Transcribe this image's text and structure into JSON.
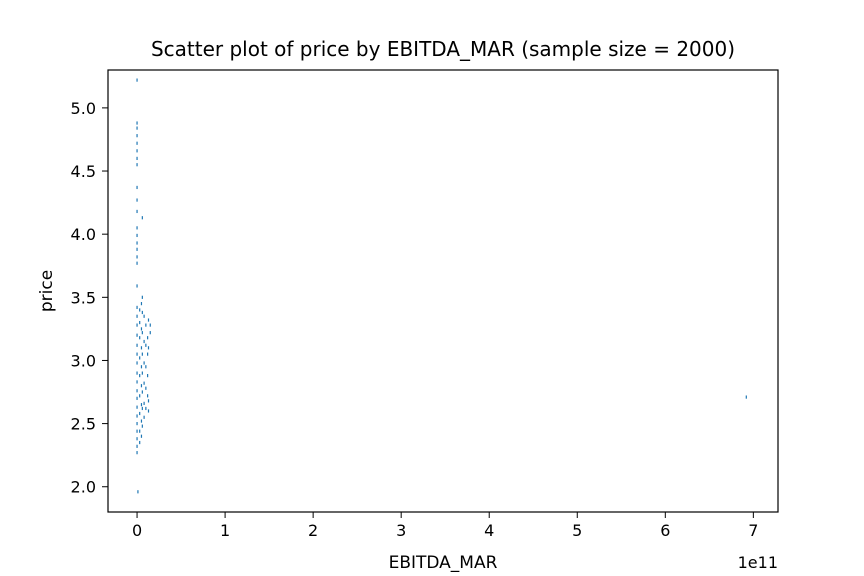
{
  "chart_data": {
    "type": "scatter",
    "title": "Scatter plot of price by EBITDA_MAR (sample size = 2000)",
    "xlabel": "EBITDA_MAR",
    "ylabel": "price",
    "x_offset_label": "1e11",
    "xlim": [
      -0.33,
      7.28
    ],
    "ylim": [
      1.8,
      5.3
    ],
    "xticks": [
      0,
      1,
      2,
      3,
      4,
      5,
      6,
      7
    ],
    "xtick_labels": [
      "0",
      "1",
      "2",
      "3",
      "4",
      "5",
      "6",
      "7"
    ],
    "yticks": [
      2.0,
      2.5,
      3.0,
      3.5,
      4.0,
      4.5,
      5.0
    ],
    "ytick_labels": [
      "2.0",
      "2.5",
      "3.0",
      "3.5",
      "4.0",
      "4.5",
      "5.0"
    ],
    "grid": false,
    "marker_color": "#1f77b4",
    "points": [
      [
        0.0,
        5.22
      ],
      [
        0.0,
        4.88
      ],
      [
        0.0,
        4.84
      ],
      [
        0.0,
        4.78
      ],
      [
        0.0,
        4.72
      ],
      [
        0.0,
        4.66
      ],
      [
        0.0,
        4.6
      ],
      [
        0.0,
        4.55
      ],
      [
        0.0,
        4.37
      ],
      [
        0.0,
        4.27
      ],
      [
        0.0,
        4.18
      ],
      [
        0.0,
        4.05
      ],
      [
        0.0,
        3.99
      ],
      [
        0.0,
        3.93
      ],
      [
        0.0,
        3.88
      ],
      [
        0.0,
        3.82
      ],
      [
        0.0,
        3.77
      ],
      [
        0.0,
        3.59
      ],
      [
        0.0,
        3.42
      ],
      [
        0.0,
        3.35
      ],
      [
        0.0,
        3.28
      ],
      [
        0.0,
        3.2
      ],
      [
        0.0,
        3.12
      ],
      [
        0.0,
        3.05
      ],
      [
        0.0,
        2.98
      ],
      [
        0.0,
        2.9
      ],
      [
        0.0,
        2.83
      ],
      [
        0.0,
        2.76
      ],
      [
        0.0,
        2.7
      ],
      [
        0.0,
        2.63
      ],
      [
        0.0,
        2.56
      ],
      [
        0.0,
        2.5
      ],
      [
        0.0,
        2.44
      ],
      [
        0.0,
        2.38
      ],
      [
        0.0,
        2.32
      ],
      [
        0.0,
        2.27
      ],
      [
        0.01,
        1.96
      ],
      [
        0.03,
        3.4
      ],
      [
        0.03,
        3.3
      ],
      [
        0.03,
        3.18
      ],
      [
        0.03,
        3.02
      ],
      [
        0.03,
        2.88
      ],
      [
        0.03,
        2.72
      ],
      [
        0.03,
        2.58
      ],
      [
        0.03,
        2.44
      ],
      [
        0.03,
        2.35
      ],
      [
        0.05,
        3.45
      ],
      [
        0.05,
        3.25
      ],
      [
        0.05,
        3.1
      ],
      [
        0.05,
        2.95
      ],
      [
        0.05,
        2.8
      ],
      [
        0.05,
        2.65
      ],
      [
        0.05,
        2.52
      ],
      [
        0.05,
        2.4
      ],
      [
        0.06,
        4.13
      ],
      [
        0.06,
        3.5
      ],
      [
        0.06,
        3.38
      ],
      [
        0.06,
        3.22
      ],
      [
        0.06,
        3.05
      ],
      [
        0.06,
        2.9
      ],
      [
        0.06,
        2.75
      ],
      [
        0.06,
        2.62
      ],
      [
        0.06,
        2.48
      ],
      [
        0.08,
        3.35
      ],
      [
        0.08,
        3.15
      ],
      [
        0.08,
        2.98
      ],
      [
        0.08,
        2.82
      ],
      [
        0.08,
        2.66
      ],
      [
        0.08,
        2.55
      ],
      [
        0.1,
        3.28
      ],
      [
        0.1,
        3.12
      ],
      [
        0.1,
        2.95
      ],
      [
        0.1,
        2.78
      ],
      [
        0.1,
        2.62
      ],
      [
        0.12,
        3.18
      ],
      [
        0.12,
        3.05
      ],
      [
        0.12,
        2.88
      ],
      [
        0.12,
        2.72
      ],
      [
        0.13,
        3.32
      ],
      [
        0.13,
        3.1
      ],
      [
        0.13,
        2.68
      ],
      [
        0.13,
        2.6
      ],
      [
        0.15,
        3.28
      ],
      [
        0.15,
        3.22
      ],
      [
        6.92,
        2.71
      ]
    ]
  }
}
